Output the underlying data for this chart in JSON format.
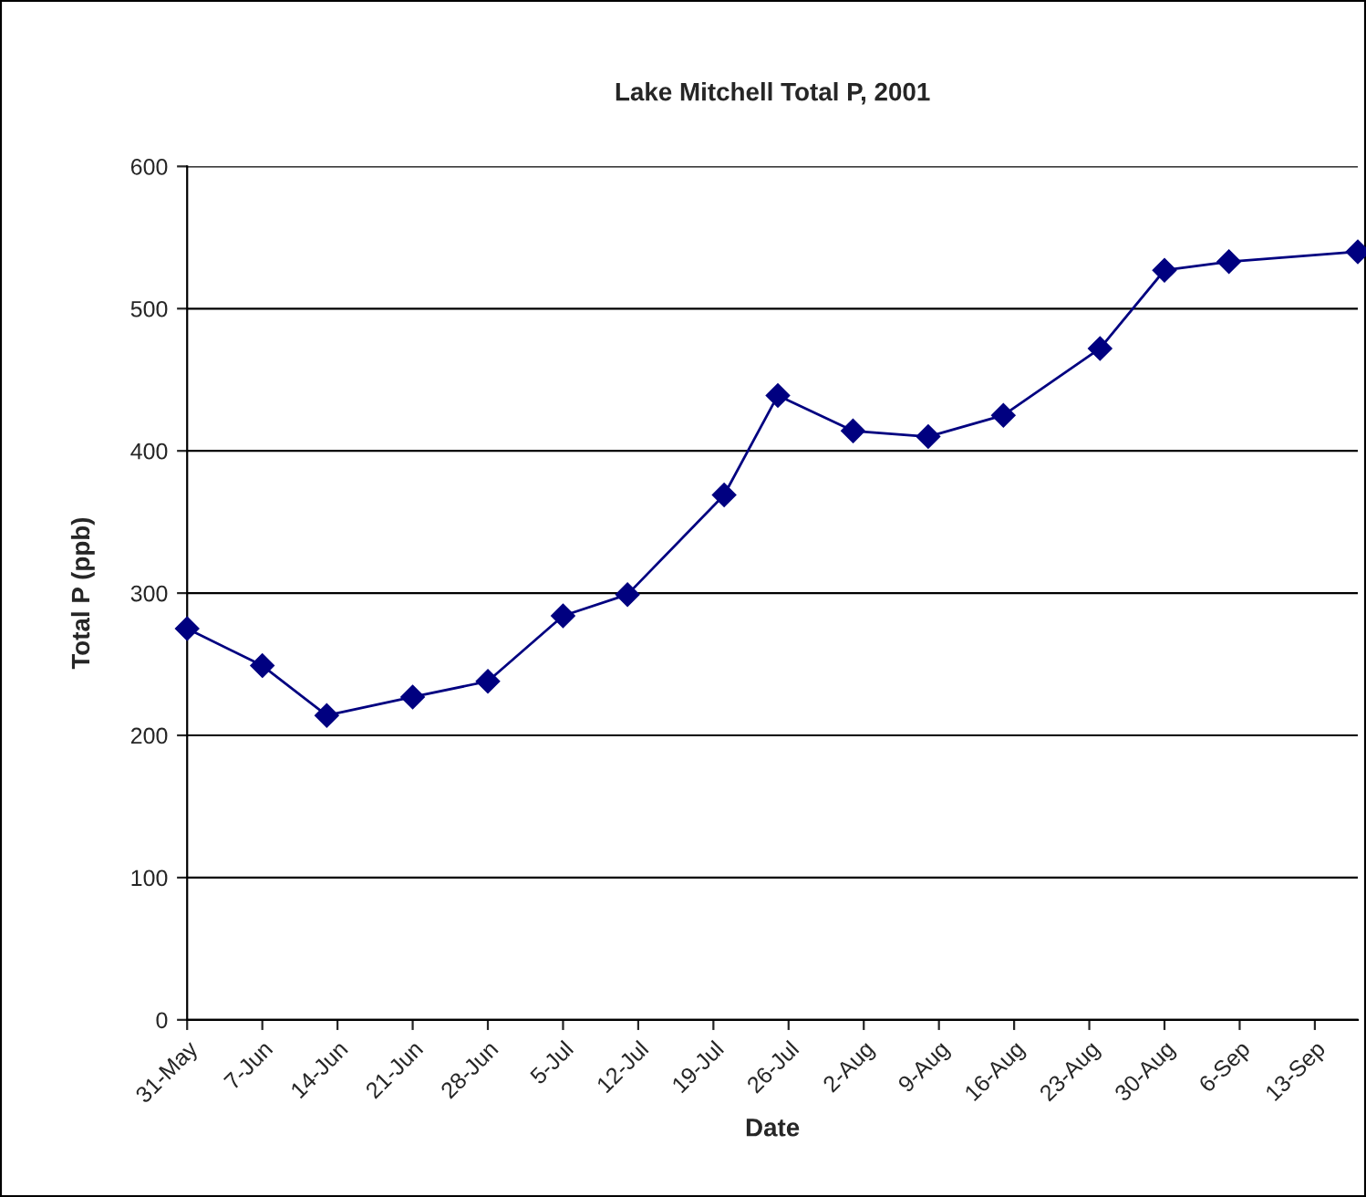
{
  "chart_data": {
    "type": "line",
    "title": "Lake Mitchell Total P, 2001",
    "xlabel": "Date",
    "ylabel": "Total P (ppb)",
    "x": [
      "2001-05-31",
      "2001-06-07",
      "2001-06-13",
      "2001-06-21",
      "2001-06-28",
      "2001-07-05",
      "2001-07-11",
      "2001-07-20",
      "2001-07-25",
      "2001-08-01",
      "2001-08-08",
      "2001-08-15",
      "2001-08-24",
      "2001-08-30",
      "2001-09-05",
      "2001-09-17"
    ],
    "series": [
      {
        "color": "#000080",
        "values": [
          275,
          249,
          214,
          227,
          238,
          284,
          299,
          369,
          439,
          414,
          410,
          425,
          472,
          527,
          533,
          540
        ]
      }
    ],
    "xlim": [
      "2001-05-31",
      "2001-09-17"
    ],
    "xticks": [
      {
        "value": "2001-05-31",
        "label": "31-May"
      },
      {
        "value": "2001-06-07",
        "label": "7-Jun"
      },
      {
        "value": "2001-06-14",
        "label": "14-Jun"
      },
      {
        "value": "2001-06-21",
        "label": "21-Jun"
      },
      {
        "value": "2001-06-28",
        "label": "28-Jun"
      },
      {
        "value": "2001-07-05",
        "label": "5-Jul"
      },
      {
        "value": "2001-07-12",
        "label": "12-Jul"
      },
      {
        "value": "2001-07-19",
        "label": "19-Jul"
      },
      {
        "value": "2001-07-26",
        "label": "26-Jul"
      },
      {
        "value": "2001-08-02",
        "label": "2-Aug"
      },
      {
        "value": "2001-08-09",
        "label": "9-Aug"
      },
      {
        "value": "2001-08-16",
        "label": "16-Aug"
      },
      {
        "value": "2001-08-23",
        "label": "23-Aug"
      },
      {
        "value": "2001-08-30",
        "label": "30-Aug"
      },
      {
        "value": "2001-09-06",
        "label": "6-Sep"
      },
      {
        "value": "2001-09-13",
        "label": "13-Sep"
      }
    ],
    "ylim": [
      0,
      600
    ],
    "yticks": [
      0,
      100,
      200,
      300,
      400,
      500,
      600
    ],
    "grid": "y",
    "legend": false,
    "marker": "diamond",
    "line_style": "solid"
  }
}
